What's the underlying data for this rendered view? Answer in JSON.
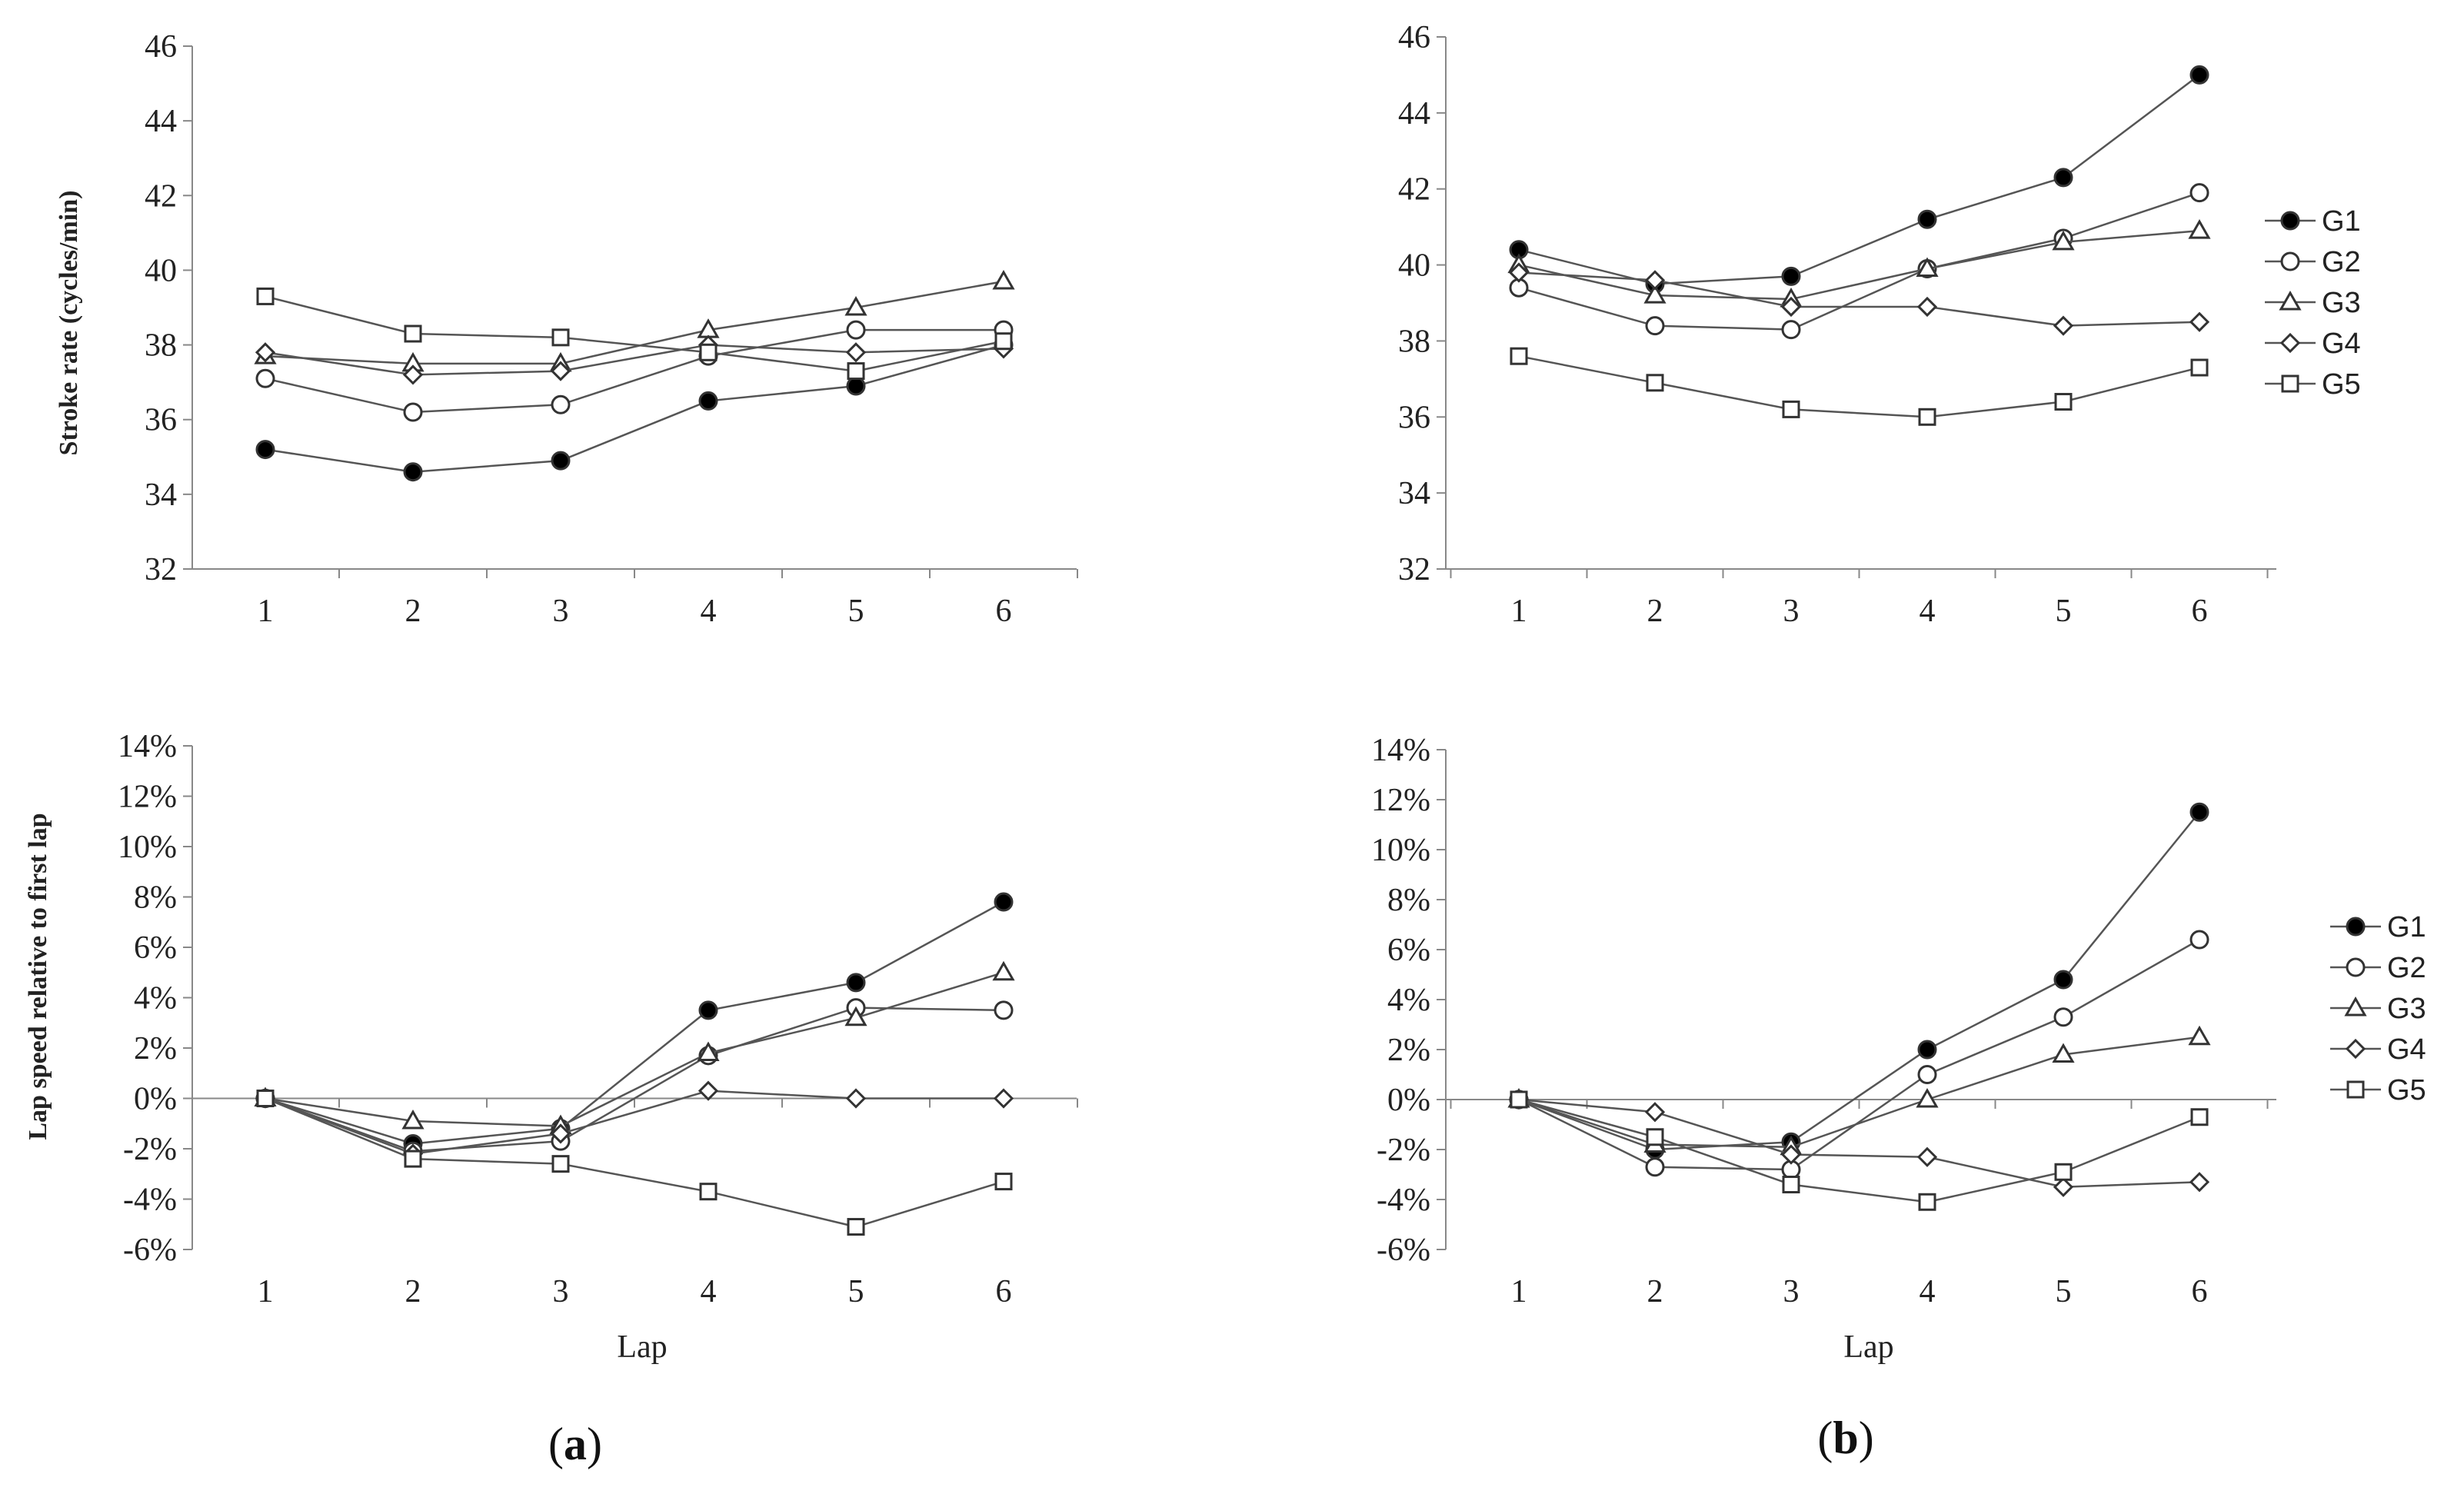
{
  "figure": {
    "panel_a": {
      "open": "(",
      "letter": "a",
      "close": ")"
    },
    "panel_b": {
      "open": "(",
      "letter": "b",
      "close": ")"
    }
  },
  "colors": {
    "line": "#555555",
    "marker_filled": "#000000",
    "marker_open": "#ffffff",
    "axis": "#888888"
  },
  "chart_data": [
    {
      "id": "a_top",
      "type": "line",
      "title": "",
      "xlabel": "",
      "ylabel": "Stroke rate (cycles/min)",
      "categories": [
        "1",
        "2",
        "3",
        "4",
        "5",
        "6"
      ],
      "ylim": [
        32,
        46
      ],
      "yticks": [
        32,
        34,
        36,
        38,
        40,
        42,
        44,
        46
      ],
      "ytick_labels": [
        "32",
        "34",
        "36",
        "38",
        "40",
        "42",
        "44",
        "46"
      ],
      "grid": false,
      "legend": "none",
      "series": [
        {
          "name": "G1",
          "marker": "filled-circle",
          "values": [
            35.2,
            34.6,
            34.9,
            36.5,
            36.9,
            38.0
          ]
        },
        {
          "name": "G2",
          "marker": "open-circle",
          "values": [
            37.1,
            36.2,
            36.4,
            37.7,
            38.4,
            38.4
          ]
        },
        {
          "name": "G3",
          "marker": "triangle",
          "values": [
            37.7,
            37.5,
            37.5,
            38.4,
            39.0,
            39.7
          ]
        },
        {
          "name": "G4",
          "marker": "diamond",
          "values": [
            37.8,
            37.2,
            37.3,
            38.0,
            37.8,
            37.9
          ]
        },
        {
          "name": "G5",
          "marker": "square",
          "values": [
            39.3,
            38.3,
            38.2,
            37.8,
            37.3,
            38.1
          ]
        }
      ]
    },
    {
      "id": "b_top",
      "type": "line",
      "title": "",
      "xlabel": "",
      "ylabel": "",
      "categories": [
        "1",
        "2",
        "3",
        "4",
        "5",
        "6"
      ],
      "ylim": [
        32,
        46
      ],
      "yticks": [
        32,
        34,
        36,
        38,
        40,
        42,
        44,
        46
      ],
      "ytick_labels": [
        "32",
        "34",
        "36",
        "38",
        "40",
        "42",
        "44",
        "46"
      ],
      "grid": false,
      "legend": "right",
      "series": [
        {
          "name": "G1",
          "marker": "filled-circle",
          "values": [
            40.4,
            39.5,
            39.7,
            41.2,
            42.3,
            45.0
          ]
        },
        {
          "name": "G2",
          "marker": "open-circle",
          "values": [
            39.4,
            38.4,
            38.3,
            39.9,
            40.7,
            41.9
          ]
        },
        {
          "name": "G3",
          "marker": "triangle",
          "values": [
            40.0,
            39.2,
            39.1,
            39.9,
            40.6,
            40.9
          ]
        },
        {
          "name": "G4",
          "marker": "diamond",
          "values": [
            39.8,
            39.6,
            38.9,
            38.9,
            38.4,
            38.5
          ]
        },
        {
          "name": "G5",
          "marker": "square",
          "values": [
            37.6,
            36.9,
            36.2,
            36.0,
            36.4,
            37.3
          ]
        }
      ]
    },
    {
      "id": "a_bottom",
      "type": "line",
      "title": "",
      "xlabel": "Lap",
      "ylabel": "Lap speed relative to first lap",
      "categories": [
        "1",
        "2",
        "3",
        "4",
        "5",
        "6"
      ],
      "ylim": [
        -6,
        14
      ],
      "yticks": [
        -6,
        -4,
        -2,
        0,
        2,
        4,
        6,
        8,
        10,
        12,
        14
      ],
      "ytick_labels": [
        "-6%",
        "-4%",
        "-2%",
        "0%",
        "2%",
        "4%",
        "6%",
        "8%",
        "10%",
        "12%",
        "14%"
      ],
      "grid": false,
      "legend": "none",
      "series": [
        {
          "name": "G1",
          "marker": "filled-circle",
          "values": [
            0,
            -1.8,
            -1.2,
            3.5,
            4.6,
            7.8
          ]
        },
        {
          "name": "G2",
          "marker": "open-circle",
          "values": [
            0,
            -2.1,
            -1.7,
            1.7,
            3.6,
            3.5
          ]
        },
        {
          "name": "G3",
          "marker": "triangle",
          "values": [
            0,
            -0.9,
            -1.1,
            1.8,
            3.2,
            5.0
          ]
        },
        {
          "name": "G4",
          "marker": "diamond",
          "values": [
            0,
            -2.2,
            -1.4,
            0.3,
            0.0,
            0.0
          ]
        },
        {
          "name": "G5",
          "marker": "square",
          "values": [
            0,
            -2.4,
            -2.6,
            -3.7,
            -5.1,
            -3.3
          ]
        }
      ]
    },
    {
      "id": "b_bottom",
      "type": "line",
      "title": "",
      "xlabel": "Lap",
      "ylabel": "",
      "categories": [
        "1",
        "2",
        "3",
        "4",
        "5",
        "6"
      ],
      "ylim": [
        -6,
        14
      ],
      "yticks": [
        -6,
        -4,
        -2,
        0,
        2,
        4,
        6,
        8,
        10,
        12,
        14
      ],
      "ytick_labels": [
        "-6%",
        "-4%",
        "-2%",
        "0%",
        "2%",
        "4%",
        "6%",
        "8%",
        "10%",
        "12%",
        "14%"
      ],
      "grid": false,
      "legend": "right",
      "series": [
        {
          "name": "G1",
          "marker": "filled-circle",
          "values": [
            0,
            -2.0,
            -1.7,
            2.0,
            4.8,
            11.5
          ]
        },
        {
          "name": "G2",
          "marker": "open-circle",
          "values": [
            0,
            -2.7,
            -2.8,
            1.0,
            3.3,
            6.4
          ]
        },
        {
          "name": "G3",
          "marker": "triangle",
          "values": [
            0,
            -1.8,
            -1.9,
            0.0,
            1.8,
            2.5
          ]
        },
        {
          "name": "G4",
          "marker": "diamond",
          "values": [
            0,
            -0.5,
            -2.2,
            -2.3,
            -3.5,
            -3.3
          ]
        },
        {
          "name": "G5",
          "marker": "square",
          "values": [
            0,
            -1.5,
            -3.4,
            -4.1,
            -2.9,
            -0.7
          ]
        }
      ]
    }
  ]
}
